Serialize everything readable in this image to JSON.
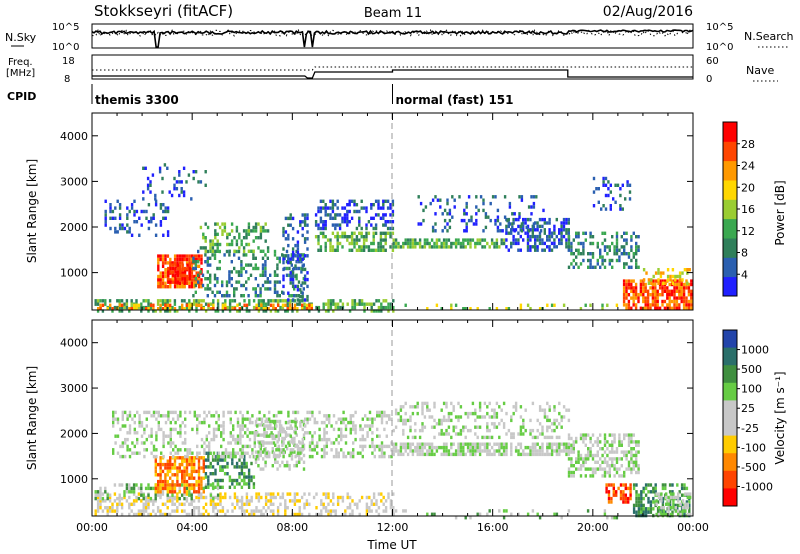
{
  "header": {
    "station": "Stokkseyri (fitACF)",
    "beam": "Beam 11",
    "date": "02/Aug/2016"
  },
  "ancillary": {
    "nsky_label": "N.Sky",
    "nsky_ticks": [
      "10^5",
      "10^0"
    ],
    "nsearch_label": "N.Search",
    "nsearch_ticks": [
      "10^5",
      "10^0"
    ],
    "freq_label_1": "Freq.",
    "freq_label_2": "[MHz]",
    "freq_ticks": [
      "18",
      "8"
    ],
    "nave_label": "Nave",
    "nave_ticks": [
      "60",
      "0"
    ],
    "cpid_label": "CPID",
    "cpid_segments": [
      {
        "name": "themis 3300",
        "start_hour": 0,
        "end_hour": 12
      },
      {
        "name": "normal (fast) 151",
        "start_hour": 12,
        "end_hour": 24
      }
    ]
  },
  "axes": {
    "x_label": "Time UT",
    "x_ticks": [
      "00:00",
      "04:00",
      "08:00",
      "12:00",
      "16:00",
      "20:00",
      "00:00"
    ],
    "x_tick_hours": [
      0,
      4,
      8,
      12,
      16,
      20,
      24
    ],
    "y_label": "Slant Range [km]",
    "y_ticks": [
      "1000",
      "2000",
      "3000",
      "4000"
    ],
    "y_tick_values": [
      1000,
      2000,
      3000,
      4000
    ],
    "y_range_km": [
      180,
      4500
    ],
    "x_range_hours": [
      0,
      24
    ]
  },
  "power_colorbar": {
    "label": "Power [dB]",
    "tick_labels": [
      "4",
      "8",
      "12",
      "16",
      "20",
      "24",
      "28"
    ],
    "colors": [
      "#2020ff",
      "#2a5fb0",
      "#2f7f5a",
      "#3aa850",
      "#9acd32",
      "#ffd700",
      "#ff9900",
      "#ff4500",
      "#ff0000"
    ]
  },
  "velocity_colorbar": {
    "label": "Velocity [m s⁻¹]",
    "tick_labels": [
      "1000",
      "500",
      "100",
      "25",
      "-25",
      "-100",
      "-500",
      "-1000"
    ],
    "colors": [
      "#2244aa",
      "#2a6f6a",
      "#3f8f3f",
      "#66cc44",
      "#c8c8c8",
      "#c8c8c8",
      "#ffcc00",
      "#ff8800",
      "#ff4400",
      "#ff0000"
    ]
  },
  "chart_data": {
    "type": "heatmap",
    "x_unit": "hours UT",
    "y_unit": "km",
    "power_regions": [
      {
        "t0": 0.1,
        "t1": 12.0,
        "r0": 180,
        "r1": 420,
        "level": 3,
        "density": 0.55
      },
      {
        "t0": 0.2,
        "t1": 8.8,
        "r0": 200,
        "r1": 320,
        "level": 6,
        "density": 0.45
      },
      {
        "t0": 2.6,
        "t1": 4.4,
        "r0": 700,
        "r1": 1400,
        "level": 7,
        "density": 0.75
      },
      {
        "t0": 3.0,
        "t1": 3.9,
        "r0": 800,
        "r1": 1200,
        "level": 8,
        "density": 0.8
      },
      {
        "t0": 4.0,
        "t1": 8.5,
        "r0": 500,
        "r1": 1500,
        "level": 2,
        "density": 0.35
      },
      {
        "t0": 4.3,
        "t1": 7.0,
        "r0": 1500,
        "r1": 2100,
        "level": 3,
        "density": 0.45
      },
      {
        "t0": 0.5,
        "t1": 3.0,
        "r0": 1800,
        "r1": 2600,
        "level": 1,
        "density": 0.25
      },
      {
        "t0": 2.0,
        "t1": 4.5,
        "r0": 2600,
        "r1": 3400,
        "level": 1,
        "density": 0.15
      },
      {
        "t0": 7.6,
        "t1": 8.6,
        "r0": 400,
        "r1": 2300,
        "level": 1,
        "density": 0.35
      },
      {
        "t0": 8.9,
        "t1": 12.0,
        "r0": 1500,
        "r1": 1900,
        "level": 3,
        "density": 0.6
      },
      {
        "t0": 8.9,
        "t1": 12.0,
        "r0": 2000,
        "r1": 2600,
        "level": 1,
        "density": 0.4
      },
      {
        "t0": 12.0,
        "t1": 16.5,
        "r0": 1550,
        "r1": 1750,
        "level": 3,
        "density": 0.7
      },
      {
        "t0": 16.5,
        "t1": 19.0,
        "r0": 1500,
        "r1": 2200,
        "level": 1,
        "density": 0.5
      },
      {
        "t0": 13.0,
        "t1": 18.0,
        "r0": 1900,
        "r1": 2700,
        "level": 1,
        "density": 0.2
      },
      {
        "t0": 19.0,
        "t1": 21.8,
        "r0": 1100,
        "r1": 1900,
        "level": 2,
        "density": 0.45
      },
      {
        "t0": 20.0,
        "t1": 21.5,
        "r0": 2400,
        "r1": 3100,
        "level": 1,
        "density": 0.25
      },
      {
        "t0": 21.2,
        "t1": 23.9,
        "r0": 180,
        "r1": 850,
        "level": 7,
        "density": 0.75
      },
      {
        "t0": 22.0,
        "t1": 23.9,
        "r0": 800,
        "r1": 1100,
        "level": 5,
        "density": 0.4
      },
      {
        "t0": 12.0,
        "t1": 21.0,
        "r0": 180,
        "r1": 320,
        "level": 4,
        "density": 0.15
      }
    ],
    "velocity_regions": [
      {
        "t0": 0.1,
        "t1": 12.0,
        "r0": 200,
        "r1": 700,
        "level": 5,
        "density": 0.45
      },
      {
        "t0": 0.1,
        "t1": 5.0,
        "r0": 600,
        "r1": 900,
        "level": 3,
        "density": 0.35
      },
      {
        "t0": 2.5,
        "t1": 4.5,
        "r0": 700,
        "r1": 1500,
        "level": 7,
        "density": 0.7
      },
      {
        "t0": 4.5,
        "t1": 6.5,
        "r0": 800,
        "r1": 1600,
        "level": 2,
        "density": 0.5
      },
      {
        "t0": 6.5,
        "t1": 8.5,
        "r0": 1200,
        "r1": 2300,
        "level": 4,
        "density": 0.4
      },
      {
        "t0": 0.8,
        "t1": 12.0,
        "r0": 1500,
        "r1": 2500,
        "level": 4,
        "density": 0.35
      },
      {
        "t0": 12.0,
        "t1": 19.0,
        "r0": 1550,
        "r1": 1800,
        "level": 4,
        "density": 0.7
      },
      {
        "t0": 12.0,
        "t1": 19.0,
        "r0": 1900,
        "r1": 2700,
        "level": 4,
        "density": 0.3
      },
      {
        "t0": 19.0,
        "t1": 21.8,
        "r0": 1100,
        "r1": 2000,
        "level": 4,
        "density": 0.5
      },
      {
        "t0": 20.5,
        "t1": 21.5,
        "r0": 500,
        "r1": 900,
        "level": 8,
        "density": 0.6
      },
      {
        "t0": 21.6,
        "t1": 23.9,
        "r0": 180,
        "r1": 900,
        "level": 2,
        "density": 0.55
      },
      {
        "t0": 22.5,
        "t1": 23.9,
        "r0": 200,
        "r1": 700,
        "level": 4,
        "density": 0.5
      },
      {
        "t0": 12.0,
        "t1": 21.0,
        "r0": 180,
        "r1": 330,
        "level": 3,
        "density": 0.15
      }
    ]
  }
}
